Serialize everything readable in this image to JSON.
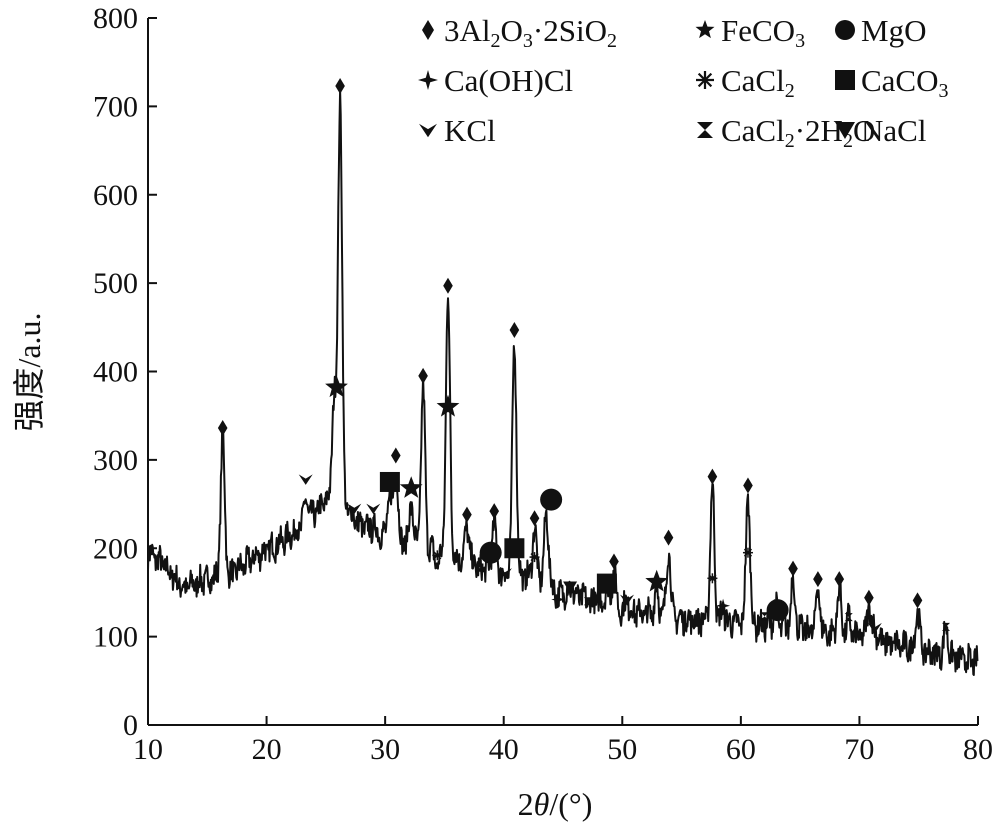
{
  "chart_data": {
    "type": "line",
    "xlabel_parts": [
      "2",
      "θ",
      "/(°)"
    ],
    "ylabel": "强度/a.u.",
    "xlim": [
      10,
      80
    ],
    "ylim": [
      0,
      800
    ],
    "x_ticks": [
      10,
      20,
      30,
      40,
      50,
      60,
      70,
      80
    ],
    "y_ticks": [
      0,
      100,
      200,
      300,
      400,
      500,
      600,
      700,
      800
    ],
    "x_tick_labels": [
      "10",
      "20",
      "30",
      "40",
      "50",
      "60",
      "70",
      "80"
    ],
    "y_tick_labels": [
      "0",
      "100",
      "200",
      "300",
      "400",
      "500",
      "600",
      "700",
      "800"
    ],
    "legend_position": "top-right",
    "legend": [
      {
        "marker": "diamond",
        "parts": [
          [
            "3Al",
            ""
          ],
          [
            "2",
            "sub"
          ],
          [
            "O",
            ""
          ],
          [
            "3",
            "sub"
          ],
          [
            "·2SiO",
            ""
          ],
          [
            "2",
            "sub"
          ]
        ]
      },
      {
        "marker": "star",
        "parts": [
          [
            "FeCO",
            ""
          ],
          [
            "3",
            "sub"
          ]
        ]
      },
      {
        "marker": "circle",
        "parts": [
          [
            "MgO",
            ""
          ]
        ]
      },
      {
        "marker": "cross4",
        "parts": [
          [
            "Ca(OH)Cl",
            ""
          ]
        ]
      },
      {
        "marker": "asterisk",
        "parts": [
          [
            "CaCl",
            ""
          ],
          [
            "2",
            "sub"
          ]
        ]
      },
      {
        "marker": "square",
        "parts": [
          [
            "CaCO",
            ""
          ],
          [
            "3",
            "sub"
          ]
        ]
      },
      {
        "marker": "chevron",
        "parts": [
          [
            "KCl",
            ""
          ]
        ]
      },
      {
        "marker": "bowtie",
        "parts": [
          [
            "CaCl",
            ""
          ],
          [
            "2",
            "sub"
          ],
          [
            "·2H",
            ""
          ],
          [
            "2",
            "sub"
          ],
          [
            "O",
            ""
          ]
        ]
      },
      {
        "marker": "triangle-down",
        "parts": [
          [
            "NaCl",
            ""
          ]
        ]
      }
    ],
    "baseline": [
      [
        10,
        195
      ],
      [
        11,
        185
      ],
      [
        12,
        170
      ],
      [
        13,
        155
      ],
      [
        15,
        165
      ],
      [
        17,
        170
      ],
      [
        19,
        190
      ],
      [
        21,
        205
      ],
      [
        23,
        225
      ],
      [
        24.5,
        245
      ],
      [
        25.5,
        260
      ],
      [
        27,
        240
      ],
      [
        28,
        225
      ],
      [
        30,
        215
      ],
      [
        32,
        205
      ],
      [
        35,
        195
      ],
      [
        38,
        180
      ],
      [
        40,
        172
      ],
      [
        43,
        165
      ],
      [
        45,
        150
      ],
      [
        48,
        140
      ],
      [
        50,
        130
      ],
      [
        55,
        120
      ],
      [
        60,
        115
      ],
      [
        65,
        108
      ],
      [
        70,
        100
      ],
      [
        75,
        85
      ],
      [
        80,
        70
      ]
    ],
    "peaks": [
      {
        "x": 16.3,
        "y": 325
      },
      {
        "x": 23.3,
        "y": 255
      },
      {
        "x": 25.7,
        "y": 370
      },
      {
        "x": 26.2,
        "y": 710
      },
      {
        "x": 27.4,
        "y": 235
      },
      {
        "x": 29.0,
        "y": 225
      },
      {
        "x": 30.4,
        "y": 260
      },
      {
        "x": 30.9,
        "y": 290
      },
      {
        "x": 32.2,
        "y": 250
      },
      {
        "x": 33.2,
        "y": 380
      },
      {
        "x": 34.4,
        "y": 180
      },
      {
        "x": 35.3,
        "y": 485
      },
      {
        "x": 36.9,
        "y": 225
      },
      {
        "x": 38.0,
        "y": 175
      },
      {
        "x": 39.2,
        "y": 230
      },
      {
        "x": 40.1,
        "y": 170
      },
      {
        "x": 40.9,
        "y": 435
      },
      {
        "x": 42.6,
        "y": 222
      },
      {
        "x": 43.6,
        "y": 240
      },
      {
        "x": 44.6,
        "y": 145
      },
      {
        "x": 45.6,
        "y": 155
      },
      {
        "x": 47.1,
        "y": 140
      },
      {
        "x": 48.7,
        "y": 155
      },
      {
        "x": 49.3,
        "y": 175
      },
      {
        "x": 50.4,
        "y": 140
      },
      {
        "x": 52.9,
        "y": 155
      },
      {
        "x": 53.9,
        "y": 200
      },
      {
        "x": 57.6,
        "y": 270
      },
      {
        "x": 58.5,
        "y": 130
      },
      {
        "x": 60.6,
        "y": 260
      },
      {
        "x": 62.9,
        "y": 135
      },
      {
        "x": 64.4,
        "y": 165
      },
      {
        "x": 66.5,
        "y": 155
      },
      {
        "x": 68.3,
        "y": 155
      },
      {
        "x": 69.1,
        "y": 120
      },
      {
        "x": 70.8,
        "y": 135
      },
      {
        "x": 71.3,
        "y": 110
      },
      {
        "x": 74.9,
        "y": 130
      },
      {
        "x": 77.3,
        "y": 110
      }
    ],
    "markers": [
      {
        "type": "diamond",
        "x": 16.3,
        "y": 336
      },
      {
        "type": "diamond",
        "x": 26.2,
        "y": 723
      },
      {
        "type": "diamond",
        "x": 30.9,
        "y": 305
      },
      {
        "type": "diamond",
        "x": 33.2,
        "y": 395
      },
      {
        "type": "diamond",
        "x": 35.3,
        "y": 497
      },
      {
        "type": "diamond",
        "x": 36.9,
        "y": 238
      },
      {
        "type": "diamond",
        "x": 39.2,
        "y": 242
      },
      {
        "type": "diamond",
        "x": 40.9,
        "y": 447
      },
      {
        "type": "diamond",
        "x": 42.6,
        "y": 234
      },
      {
        "type": "diamond",
        "x": 49.3,
        "y": 185
      },
      {
        "type": "diamond",
        "x": 53.9,
        "y": 212
      },
      {
        "type": "diamond",
        "x": 57.6,
        "y": 281
      },
      {
        "type": "diamond",
        "x": 60.6,
        "y": 271
      },
      {
        "type": "diamond",
        "x": 64.4,
        "y": 177
      },
      {
        "type": "diamond",
        "x": 66.5,
        "y": 165
      },
      {
        "type": "diamond",
        "x": 68.3,
        "y": 165
      },
      {
        "type": "diamond",
        "x": 70.8,
        "y": 144
      },
      {
        "type": "diamond",
        "x": 74.9,
        "y": 141
      },
      {
        "type": "star",
        "x": 25.9,
        "y": 382
      },
      {
        "type": "star",
        "x": 32.2,
        "y": 268
      },
      {
        "type": "star",
        "x": 35.3,
        "y": 360
      },
      {
        "type": "star",
        "x": 52.9,
        "y": 162
      },
      {
        "type": "circle",
        "x": 38.9,
        "y": 195
      },
      {
        "type": "circle",
        "x": 44.0,
        "y": 255
      },
      {
        "type": "circle",
        "x": 63.1,
        "y": 130
      },
      {
        "type": "cross4",
        "x": 44.6,
        "y": 142
      },
      {
        "type": "cross4",
        "x": 58.5,
        "y": 135
      },
      {
        "type": "asterisk",
        "x": 34.4,
        "y": 192
      },
      {
        "type": "asterisk",
        "x": 42.6,
        "y": 190
      },
      {
        "type": "asterisk",
        "x": 57.6,
        "y": 166
      },
      {
        "type": "asterisk",
        "x": 60.6,
        "y": 195
      },
      {
        "type": "square",
        "x": 30.4,
        "y": 275
      },
      {
        "type": "square",
        "x": 40.9,
        "y": 200
      },
      {
        "type": "square",
        "x": 48.7,
        "y": 160
      },
      {
        "type": "chevron",
        "x": 23.3,
        "y": 278
      },
      {
        "type": "chevron",
        "x": 27.4,
        "y": 245
      },
      {
        "type": "chevron",
        "x": 29.0,
        "y": 245
      },
      {
        "type": "chevron",
        "x": 40.1,
        "y": 172
      },
      {
        "type": "chevron",
        "x": 50.4,
        "y": 142
      },
      {
        "type": "chevron",
        "x": 71.3,
        "y": 110
      },
      {
        "type": "bowtie",
        "x": 38.0,
        "y": 178
      },
      {
        "type": "bowtie",
        "x": 47.1,
        "y": 140
      },
      {
        "type": "bowtie",
        "x": 62.0,
        "y": 123
      },
      {
        "type": "bowtie",
        "x": 69.1,
        "y": 122
      },
      {
        "type": "bowtie",
        "x": 77.3,
        "y": 111
      },
      {
        "type": "triangle-down",
        "x": 45.6,
        "y": 156
      }
    ],
    "colors": {
      "line": "#111111",
      "marker": "#111111",
      "axis": "#111111"
    }
  }
}
